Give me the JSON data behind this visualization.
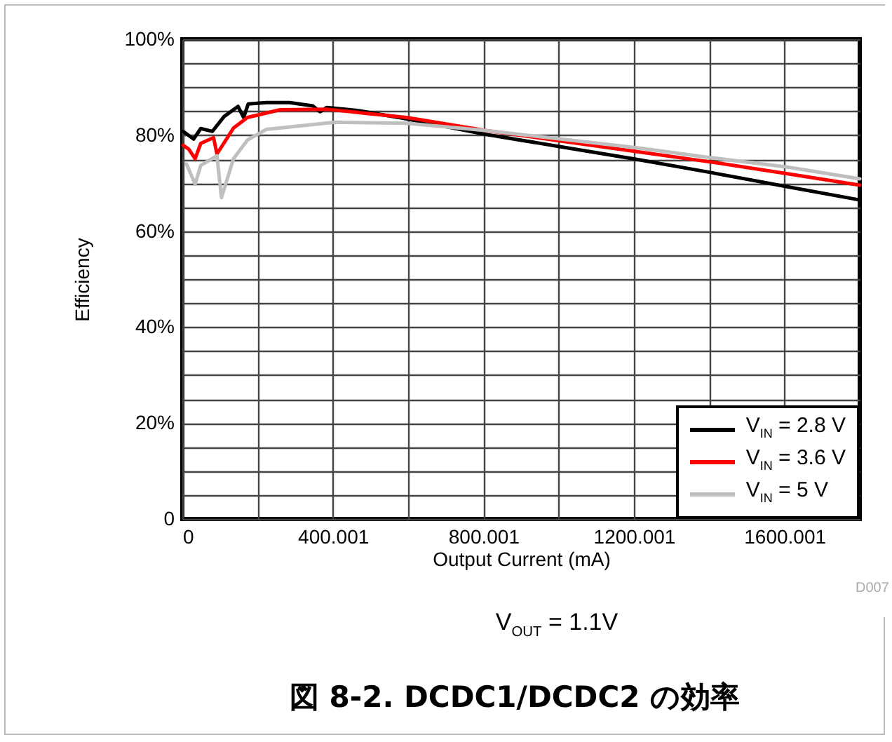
{
  "chart_data": {
    "type": "line",
    "title": "図 8-2. DCDC1/DCDC2 の効率",
    "xlabel": "Output Current (mA)",
    "ylabel": "Efficiency",
    "annotations": [
      "V$_{OUT}$ = 1.1V",
      "D007"
    ],
    "xlim": [
      0,
      1800
    ],
    "xticks": [
      0,
      {
        "value": 200,
        "label": null
      },
      400.001,
      {
        "value": 600,
        "label": null
      },
      800.001,
      {
        "value": 1000,
        "label": null
      },
      1200.001,
      {
        "value": 1400,
        "label": null
      },
      1600.001
    ],
    "ylim": [
      0,
      100
    ],
    "yticks": [
      {
        "value": 0,
        "label": "0"
      },
      {
        "value": 5,
        "label": null
      },
      {
        "value": 10,
        "label": null
      },
      {
        "value": 15,
        "label": null
      },
      {
        "value": 20,
        "label": "20%"
      },
      {
        "value": 25,
        "label": null
      },
      {
        "value": 30,
        "label": null
      },
      {
        "value": 35,
        "label": null
      },
      {
        "value": 40,
        "label": "40%"
      },
      {
        "value": 45,
        "label": null
      },
      {
        "value": 50,
        "label": null
      },
      {
        "value": 55,
        "label": null
      },
      {
        "value": 60,
        "label": "60%"
      },
      {
        "value": 65,
        "label": null
      },
      {
        "value": 70,
        "label": null
      },
      {
        "value": 75,
        "label": null
      },
      {
        "value": 80,
        "label": "80%"
      },
      {
        "value": 85,
        "label": null
      },
      {
        "value": 90,
        "label": null
      },
      {
        "value": 95,
        "label": null
      },
      {
        "value": 100,
        "label": "100%"
      }
    ],
    "grid": true,
    "legend": "bottom right",
    "line_style": "solid",
    "series": [
      {
        "name": "V$_{IN}$ = 2.8 V",
        "color": "#000000",
        "x": [
          2,
          30,
          49,
          80,
          111,
          148,
          163,
          175,
          223,
          285,
          347,
          366,
          384,
          471,
          596,
          805,
          1005,
          1205,
          1406,
          1605,
          1800
        ],
        "values": [
          80.8,
          79.2,
          81.4,
          80.8,
          83.9,
          86.0,
          83.7,
          86.5,
          86.8,
          86.8,
          86.1,
          84.9,
          85.8,
          85.1,
          83.4,
          80.2,
          77.6,
          75.0,
          72.2,
          69.3,
          66.5
        ]
      },
      {
        "name": "V$_{IN}$ = 3.6 V",
        "color": "#ff0000",
        "x": [
          2,
          17,
          34,
          49,
          83,
          92,
          136,
          173,
          260,
          384,
          596,
          805,
          1005,
          1205,
          1406,
          1605,
          1800
        ],
        "values": [
          77.9,
          77.1,
          75.1,
          78.3,
          79.5,
          76.1,
          81.5,
          83.7,
          85.3,
          85.4,
          83.7,
          81.0,
          78.8,
          76.6,
          74.4,
          72.0,
          69.6
        ]
      },
      {
        "name": "V$_{IN}$ = 5 V",
        "color": "#bfbfbf",
        "x": [
          11,
          34,
          49,
          92,
          104,
          136,
          173,
          223,
          406,
          596,
          805,
          1005,
          1205,
          1406,
          1605,
          1800
        ],
        "values": [
          74.0,
          69.8,
          73.7,
          75.7,
          67.0,
          75.1,
          79.0,
          81.2,
          82.7,
          82.5,
          81.0,
          79.2,
          77.4,
          75.3,
          73.4,
          70.9
        ]
      }
    ]
  }
}
